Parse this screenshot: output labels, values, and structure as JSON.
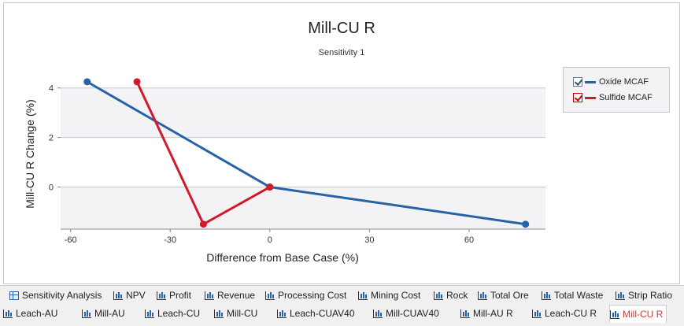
{
  "chart_data": {
    "type": "line",
    "title": "Mill-CU R",
    "subtitle": "Sensitivity 1",
    "xlabel": "Difference from Base Case (%)",
    "ylabel": "Mill-CU R Change (%)",
    "xlim": [
      -63,
      83
    ],
    "ylim": [
      -1.7,
      4.5
    ],
    "xticks": [
      -60,
      -30,
      0,
      30,
      60
    ],
    "yticks": [
      0,
      2,
      4
    ],
    "grid": true,
    "legend_position": "right",
    "series": [
      {
        "name": "Oxide MCAF",
        "color": "#2563a8",
        "x": [
          -55,
          0,
          77
        ],
        "y": [
          4.25,
          0.0,
          -1.5
        ]
      },
      {
        "name": "Sulfide MCAF",
        "color": "#d11a2a",
        "x": [
          -40,
          -20,
          0
        ],
        "y": [
          4.25,
          -1.5,
          0.0
        ]
      }
    ]
  },
  "tabs": {
    "row1": [
      {
        "label": "Sensitivity Analysis",
        "icon": "grid-icon"
      },
      {
        "label": "NPV",
        "icon": "bar-chart-icon"
      },
      {
        "label": "Profit",
        "icon": "bar-chart-icon"
      },
      {
        "label": "Revenue",
        "icon": "bar-chart-icon"
      },
      {
        "label": "Processing Cost",
        "icon": "bar-chart-icon"
      },
      {
        "label": "Mining Cost",
        "icon": "bar-chart-icon"
      },
      {
        "label": "Rock",
        "icon": "bar-chart-icon"
      },
      {
        "label": "Total Ore",
        "icon": "bar-chart-icon"
      },
      {
        "label": "Total Waste",
        "icon": "bar-chart-icon"
      },
      {
        "label": "Strip Ratio",
        "icon": "bar-chart-icon"
      }
    ],
    "row2": [
      {
        "label": "Leach-AU",
        "icon": "bar-chart-icon"
      },
      {
        "label": "Mill-AU",
        "icon": "bar-chart-icon"
      },
      {
        "label": "Leach-CU",
        "icon": "bar-chart-icon"
      },
      {
        "label": "Mill-CU",
        "icon": "bar-chart-icon"
      },
      {
        "label": "Leach-CUAV40",
        "icon": "bar-chart-icon"
      },
      {
        "label": "Mill-CUAV40",
        "icon": "bar-chart-icon"
      },
      {
        "label": "Mill-AU R",
        "icon": "bar-chart-icon"
      },
      {
        "label": "Leach-CU R",
        "icon": "bar-chart-icon"
      },
      {
        "label": "Mill-CU R",
        "icon": "bar-chart-icon",
        "active": true
      }
    ]
  }
}
